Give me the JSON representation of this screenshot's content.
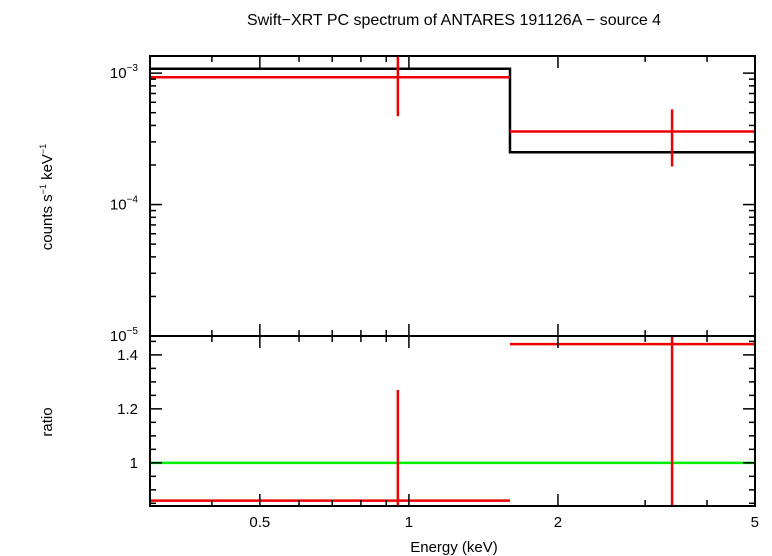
{
  "chart_data": {
    "type": "step-spectrum",
    "title": "Swift−XRT PC spectrum of ANTARES 191126A − source 4",
    "xlabel": "Energy (keV)",
    "x_scale": "log",
    "xlim": [
      0.3,
      5
    ],
    "x_ticks": [
      {
        "value": 0.5,
        "label": "0.5"
      },
      {
        "value": 1,
        "label": "1"
      },
      {
        "value": 2,
        "label": "2"
      },
      {
        "value": 5,
        "label": "5"
      }
    ],
    "panels": [
      {
        "name": "spectrum",
        "ylabel_parts": [
          "counts s",
          "−1",
          " keV",
          "−1"
        ],
        "y_scale": "log",
        "ylim": [
          1e-05,
          0.00135
        ],
        "y_ticks": [
          {
            "value": 0.001,
            "base": "10",
            "exp": "−3"
          },
          {
            "value": 0.0001,
            "base": "10",
            "exp": "−4"
          },
          {
            "value": 1e-05,
            "base": "10",
            "exp": "−5"
          }
        ],
        "model_step": {
          "color": "#000000",
          "bins": [
            {
              "x0": 0.3,
              "x1": 1.6,
              "y": 0.00108
            },
            {
              "x0": 1.6,
              "x1": 5.0,
              "y": 0.00025
            }
          ]
        },
        "data": {
          "color": "#ee0000",
          "points": [
            {
              "x": 0.95,
              "xlo": 0.3,
              "xhi": 1.6,
              "y": 0.00093,
              "ylo": 0.00047,
              "yhi": 0.00135
            },
            {
              "x": 3.4,
              "xlo": 1.6,
              "xhi": 5.0,
              "y": 0.00036,
              "ylo": 0.000195,
              "yhi": 0.00053
            }
          ]
        }
      },
      {
        "name": "ratio",
        "ylabel": "ratio",
        "y_scale": "linear",
        "ylim": [
          0.84,
          1.47
        ],
        "y_ticks": [
          {
            "value": 1.0,
            "label": "1"
          },
          {
            "value": 1.2,
            "label": "1.2"
          },
          {
            "value": 1.4,
            "label": "1.4"
          }
        ],
        "reference_line": {
          "y": 1.0,
          "color": "#00ee00"
        },
        "data": {
          "color": "#ee0000",
          "points": [
            {
              "x": 0.95,
              "xlo": 0.3,
              "xhi": 1.6,
              "y": 0.86,
              "ylo": 0.84,
              "yhi": 1.27
            },
            {
              "x": 3.4,
              "xlo": 1.6,
              "xhi": 5.0,
              "y": 1.44,
              "ylo": 0.84,
              "yhi": 1.47
            }
          ]
        }
      }
    ]
  }
}
